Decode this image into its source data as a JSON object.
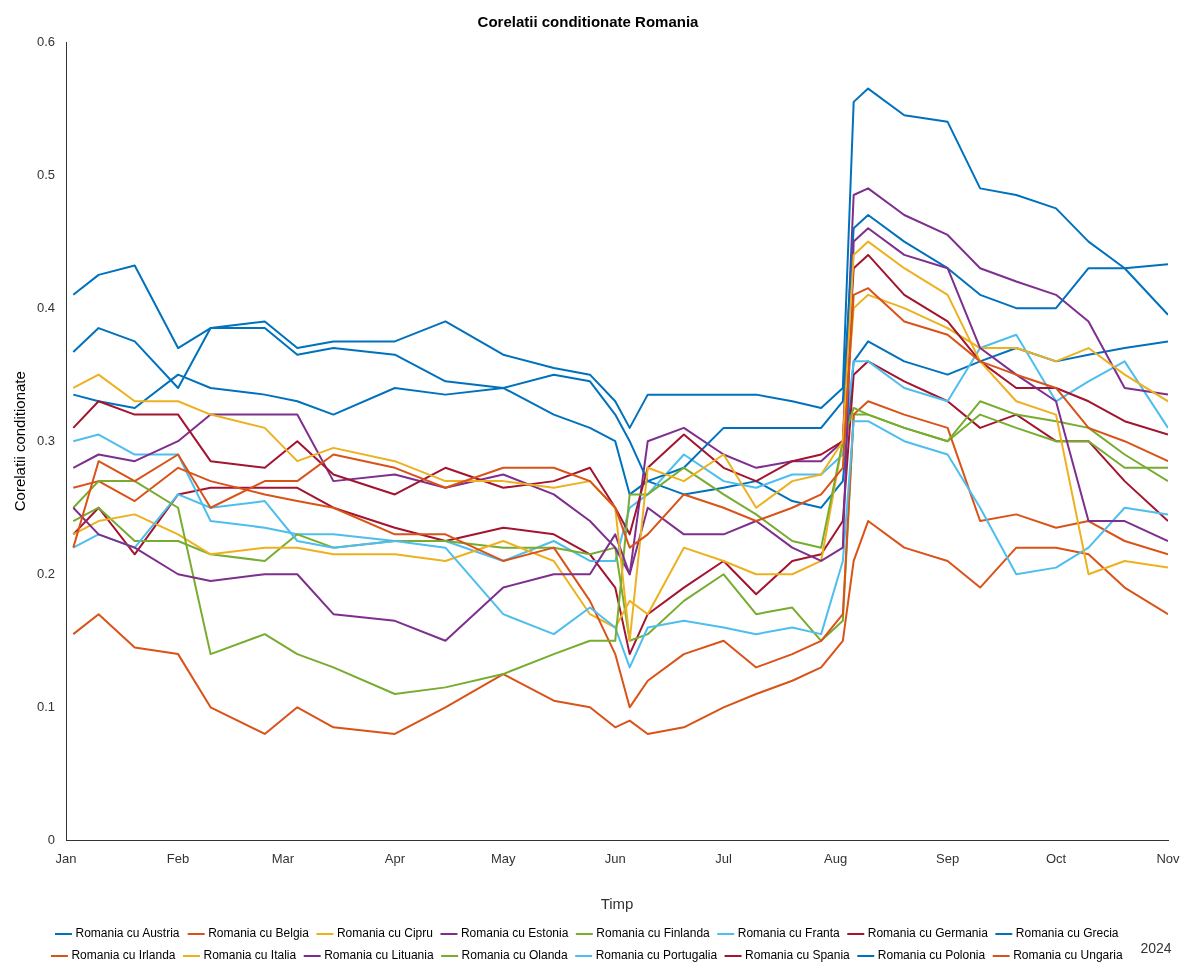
{
  "chart_data": {
    "type": "line",
    "title": "Corelatii conditionate Romania",
    "xlabel": "Timp",
    "ylabel": "Corelatii conditionate",
    "annotations": [
      "2024"
    ],
    "x": [
      "2024-01-03",
      "2024-01-10",
      "2024-01-20",
      "2024-02-01",
      "2024-02-10",
      "2024-02-25",
      "2024-03-05",
      "2024-03-15",
      "2024-04-01",
      "2024-04-15",
      "2024-05-01",
      "2024-05-15",
      "2024-05-25",
      "2024-06-01",
      "2024-06-05",
      "2024-06-10",
      "2024-06-20",
      "2024-07-01",
      "2024-07-10",
      "2024-07-20",
      "2024-07-28",
      "2024-08-03",
      "2024-08-06",
      "2024-08-10",
      "2024-08-20",
      "2024-09-01",
      "2024-09-10",
      "2024-09-20",
      "2024-10-01",
      "2024-10-10",
      "2024-10-20",
      "2024-11-01"
    ],
    "series": [
      {
        "name": "Romania cu Austria",
        "color": "#0072bd",
        "values": [
          0.41,
          0.425,
          0.432,
          0.37,
          0.385,
          0.39,
          0.37,
          0.375,
          0.375,
          0.39,
          0.365,
          0.355,
          0.35,
          0.33,
          0.31,
          0.335,
          0.335,
          0.335,
          0.335,
          0.33,
          0.325,
          0.34,
          0.555,
          0.565,
          0.545,
          0.54,
          0.49,
          0.485,
          0.475,
          0.45,
          0.43,
          0.433
        ]
      },
      {
        "name": "Romania cu Belgia",
        "color": "#d95319",
        "values": [
          0.22,
          0.285,
          0.27,
          0.29,
          0.25,
          0.27,
          0.27,
          0.29,
          0.28,
          0.265,
          0.28,
          0.28,
          0.27,
          0.25,
          0.22,
          0.23,
          0.26,
          0.25,
          0.24,
          0.25,
          0.26,
          0.28,
          0.41,
          0.415,
          0.39,
          0.38,
          0.36,
          0.35,
          0.34,
          0.31,
          0.3,
          0.285
        ]
      },
      {
        "name": "Romania cu Cipru",
        "color": "#edb120",
        "values": [
          0.34,
          0.35,
          0.33,
          0.33,
          0.32,
          0.31,
          0.285,
          0.295,
          0.285,
          0.27,
          0.27,
          0.265,
          0.27,
          0.25,
          0.15,
          0.28,
          0.27,
          0.29,
          0.25,
          0.27,
          0.275,
          0.3,
          0.44,
          0.45,
          0.43,
          0.41,
          0.36,
          0.33,
          0.32,
          0.2,
          0.21,
          0.205
        ]
      },
      {
        "name": "Romania cu Estonia",
        "color": "#7e2f8e",
        "values": [
          0.25,
          0.23,
          0.22,
          0.2,
          0.195,
          0.2,
          0.2,
          0.17,
          0.165,
          0.15,
          0.19,
          0.2,
          0.2,
          0.23,
          0.2,
          0.25,
          0.23,
          0.23,
          0.24,
          0.22,
          0.21,
          0.22,
          0.45,
          0.46,
          0.44,
          0.43,
          0.37,
          0.35,
          0.33,
          0.24,
          0.24,
          0.225
        ]
      },
      {
        "name": "Romania cu Finlanda",
        "color": "#77ac30",
        "values": [
          0.25,
          0.27,
          0.27,
          0.25,
          0.14,
          0.155,
          0.14,
          0.13,
          0.11,
          0.115,
          0.125,
          0.14,
          0.15,
          0.15,
          0.26,
          0.26,
          0.28,
          0.26,
          0.245,
          0.225,
          0.22,
          0.3,
          0.325,
          0.32,
          0.31,
          0.3,
          0.33,
          0.32,
          0.315,
          0.31,
          0.29,
          0.27
        ]
      },
      {
        "name": "Romania cu Franta",
        "color": "#4dbeee",
        "values": [
          0.22,
          0.23,
          0.22,
          0.26,
          0.25,
          0.255,
          0.225,
          0.22,
          0.225,
          0.22,
          0.17,
          0.155,
          0.175,
          0.16,
          0.13,
          0.16,
          0.165,
          0.16,
          0.155,
          0.16,
          0.155,
          0.21,
          0.315,
          0.315,
          0.3,
          0.29,
          0.25,
          0.2,
          0.205,
          0.22,
          0.25,
          0.245
        ]
      },
      {
        "name": "Romania cu Germania",
        "color": "#a2142f",
        "values": [
          0.31,
          0.33,
          0.32,
          0.32,
          0.285,
          0.28,
          0.3,
          0.275,
          0.26,
          0.28,
          0.265,
          0.27,
          0.28,
          0.25,
          0.23,
          0.28,
          0.305,
          0.28,
          0.27,
          0.285,
          0.29,
          0.3,
          0.43,
          0.44,
          0.41,
          0.39,
          0.36,
          0.34,
          0.34,
          0.33,
          0.315,
          0.305
        ]
      },
      {
        "name": "Romania cu Grecia",
        "color": "#0072bd",
        "values": [
          0.367,
          0.385,
          0.375,
          0.34,
          0.385,
          0.385,
          0.365,
          0.37,
          0.365,
          0.345,
          0.34,
          0.35,
          0.345,
          0.32,
          0.3,
          0.27,
          0.28,
          0.31,
          0.31,
          0.31,
          0.31,
          0.33,
          0.46,
          0.47,
          0.45,
          0.43,
          0.41,
          0.4,
          0.4,
          0.43,
          0.43,
          0.395
        ]
      },
      {
        "name": "Romania cu Irlanda",
        "color": "#d95319",
        "values": [
          0.265,
          0.27,
          0.255,
          0.28,
          0.27,
          0.26,
          0.255,
          0.25,
          0.23,
          0.23,
          0.21,
          0.22,
          0.18,
          0.14,
          0.1,
          0.12,
          0.14,
          0.15,
          0.13,
          0.14,
          0.15,
          0.17,
          0.32,
          0.33,
          0.32,
          0.31,
          0.24,
          0.245,
          0.235,
          0.24,
          0.225,
          0.215
        ]
      },
      {
        "name": "Romania cu Italia",
        "color": "#edb120",
        "values": [
          0.23,
          0.24,
          0.245,
          0.23,
          0.215,
          0.22,
          0.22,
          0.215,
          0.215,
          0.21,
          0.225,
          0.21,
          0.17,
          0.16,
          0.18,
          0.17,
          0.22,
          0.21,
          0.2,
          0.2,
          0.21,
          0.3,
          0.4,
          0.41,
          0.4,
          0.385,
          0.37,
          0.37,
          0.36,
          0.37,
          0.35,
          0.33
        ]
      },
      {
        "name": "Romania cu Lituania",
        "color": "#7e2f8e",
        "values": [
          0.28,
          0.29,
          0.285,
          0.3,
          0.32,
          0.32,
          0.32,
          0.27,
          0.275,
          0.265,
          0.275,
          0.26,
          0.24,
          0.22,
          0.2,
          0.3,
          0.31,
          0.29,
          0.28,
          0.285,
          0.285,
          0.3,
          0.485,
          0.49,
          0.47,
          0.455,
          0.43,
          0.42,
          0.41,
          0.39,
          0.34,
          0.335
        ]
      },
      {
        "name": "Romania cu Olanda",
        "color": "#77ac30",
        "values": [
          0.24,
          0.25,
          0.225,
          0.225,
          0.215,
          0.21,
          0.23,
          0.22,
          0.225,
          0.225,
          0.22,
          0.22,
          0.215,
          0.22,
          0.15,
          0.155,
          0.18,
          0.2,
          0.17,
          0.175,
          0.15,
          0.165,
          0.32,
          0.32,
          0.31,
          0.3,
          0.32,
          0.31,
          0.3,
          0.3,
          0.28,
          0.28
        ]
      },
      {
        "name": "Romania cu Portugalia",
        "color": "#4dbeee",
        "values": [
          0.3,
          0.305,
          0.29,
          0.29,
          0.24,
          0.235,
          0.23,
          0.23,
          0.225,
          0.225,
          0.21,
          0.225,
          0.21,
          0.21,
          0.25,
          0.26,
          0.29,
          0.27,
          0.265,
          0.275,
          0.275,
          0.29,
          0.36,
          0.36,
          0.34,
          0.33,
          0.37,
          0.38,
          0.33,
          0.345,
          0.36,
          0.31
        ]
      },
      {
        "name": "Romania cu Spania",
        "color": "#a2142f",
        "values": [
          0.23,
          0.25,
          0.215,
          0.26,
          0.265,
          0.265,
          0.265,
          0.25,
          0.235,
          0.225,
          0.235,
          0.23,
          0.215,
          0.19,
          0.14,
          0.17,
          0.19,
          0.21,
          0.185,
          0.21,
          0.215,
          0.24,
          0.35,
          0.36,
          0.345,
          0.33,
          0.31,
          0.32,
          0.3,
          0.3,
          0.27,
          0.24
        ]
      },
      {
        "name": "Romania cu Polonia",
        "color": "#0072bd",
        "values": [
          0.335,
          0.33,
          0.325,
          0.35,
          0.34,
          0.335,
          0.33,
          0.32,
          0.34,
          0.335,
          0.34,
          0.32,
          0.31,
          0.3,
          0.26,
          0.27,
          0.26,
          0.265,
          0.27,
          0.255,
          0.25,
          0.27,
          0.36,
          0.375,
          0.36,
          0.35,
          0.36,
          0.37,
          0.36,
          0.365,
          0.37,
          0.375
        ]
      },
      {
        "name": "Romania cu Ungaria",
        "color": "#d95319",
        "values": [
          0.155,
          0.17,
          0.145,
          0.14,
          0.1,
          0.08,
          0.1,
          0.085,
          0.08,
          0.1,
          0.125,
          0.105,
          0.1,
          0.085,
          0.09,
          0.08,
          0.085,
          0.1,
          0.11,
          0.12,
          0.13,
          0.15,
          0.21,
          0.24,
          0.22,
          0.21,
          0.19,
          0.22,
          0.22,
          0.215,
          0.19,
          0.17
        ]
      }
    ],
    "xlim": [
      "2024-01-01",
      "2024-11-01"
    ],
    "xticks": [
      {
        "value": "2024-01-01",
        "label": "Jan"
      },
      {
        "value": "2024-02-01",
        "label": "Feb"
      },
      {
        "value": "2024-03-01",
        "label": "Mar"
      },
      {
        "value": "2024-04-01",
        "label": "Apr"
      },
      {
        "value": "2024-05-01",
        "label": "May"
      },
      {
        "value": "2024-06-01",
        "label": "Jun"
      },
      {
        "value": "2024-07-01",
        "label": "Jul"
      },
      {
        "value": "2024-08-01",
        "label": "Aug"
      },
      {
        "value": "2024-09-01",
        "label": "Sep"
      },
      {
        "value": "2024-10-01",
        "label": "Oct"
      },
      {
        "value": "2024-11-01",
        "label": "Nov"
      }
    ],
    "ylim": [
      0,
      0.6
    ],
    "yticks": [
      0,
      0.1,
      0.2,
      0.3,
      0.4,
      0.5,
      0.6
    ],
    "grid": false,
    "legend": "bottom",
    "marker": "none",
    "line_style": "solid"
  }
}
